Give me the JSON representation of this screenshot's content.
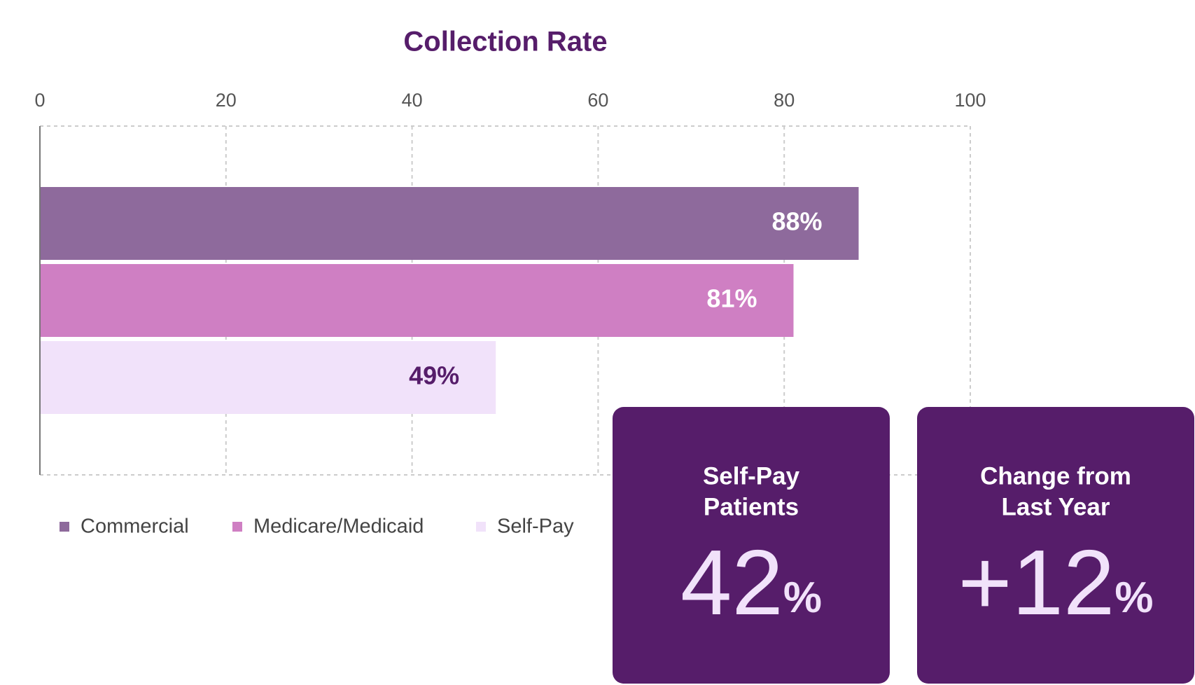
{
  "chart_data": {
    "type": "hbar",
    "title": "Collection Rate",
    "categories": [
      null
    ],
    "series": [
      {
        "name": "Commercial",
        "color": "#8e6a9c",
        "values": [
          88
        ],
        "value_labels": [
          "88%"
        ]
      },
      {
        "name": "Medicare/Medicaid",
        "color": "#cf7fc3",
        "values": [
          81
        ],
        "value_labels": [
          "81%"
        ]
      },
      {
        "name": "Self-Pay",
        "color": "#f1e2fa",
        "values": [
          49
        ],
        "value_labels": [
          "49%"
        ]
      }
    ],
    "xlim": [
      0,
      100
    ],
    "xticks": [
      0,
      20,
      40,
      60,
      80,
      100
    ],
    "grid": true,
    "legend": "bottom-left"
  },
  "cards": [
    {
      "title": [
        "Self-Pay",
        "Patients"
      ],
      "value": "42",
      "unit": "%"
    },
    {
      "title": [
        "Change from",
        "Last Year"
      ],
      "value": "+12",
      "unit": "%"
    }
  ]
}
